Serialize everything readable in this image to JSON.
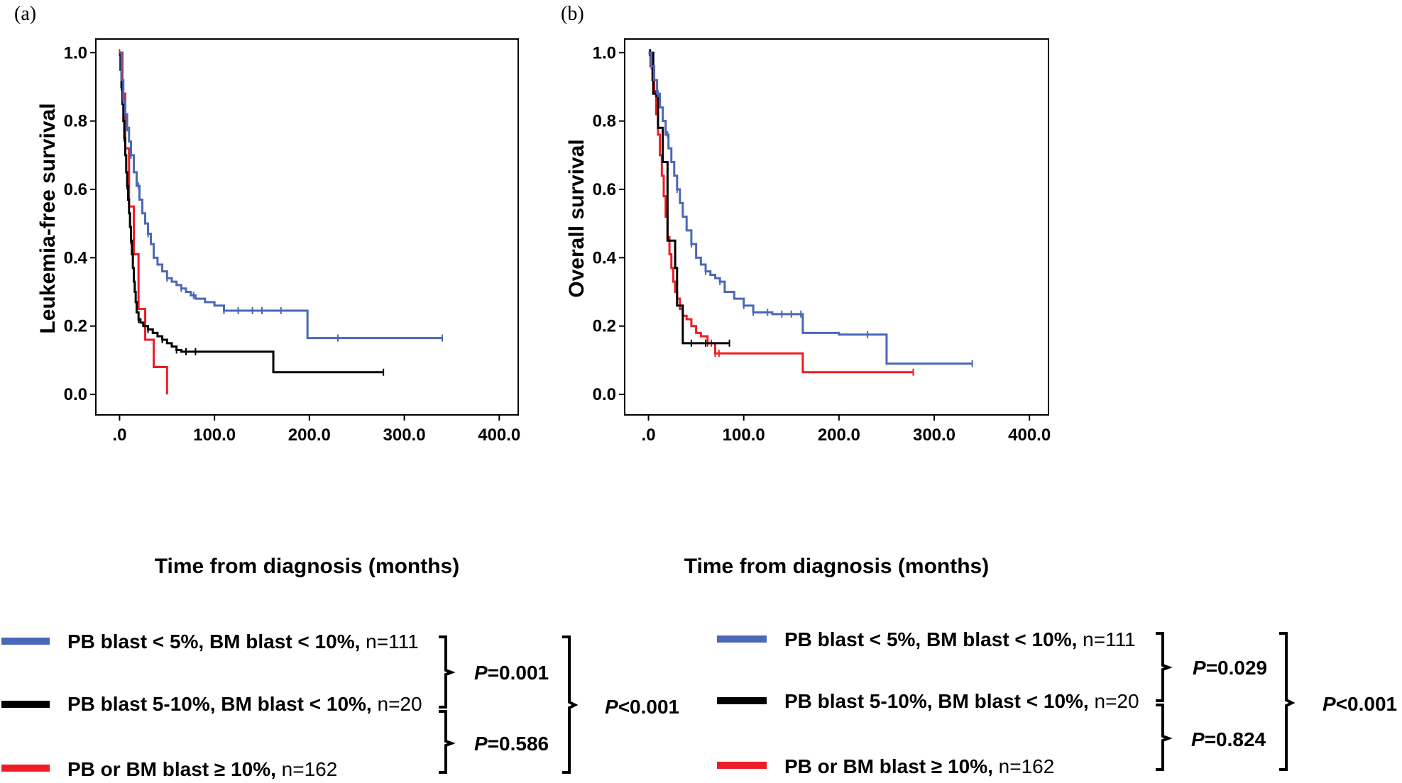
{
  "colors": {
    "blue": "#4a68b6",
    "black": "#000000",
    "red": "#ee1c25"
  },
  "chart_data": [
    {
      "type": "line",
      "panel_label": "(a)",
      "ylabel": "Leukemia-free survival",
      "xlabel": "Time from diagnosis (months)",
      "xlim": [
        -25,
        420
      ],
      "ylim": [
        -0.06,
        1.04
      ],
      "xticks": [
        0,
        100,
        200,
        300,
        400
      ],
      "xtick_labels": [
        ".0",
        "100.0",
        "200.0",
        "300.0",
        "400.0"
      ],
      "yticks": [
        0,
        0.2,
        0.4,
        0.6,
        0.8,
        1.0
      ],
      "ytick_labels": [
        "0.0",
        "0.2",
        "0.4",
        "0.6",
        "0.8",
        "1.0"
      ],
      "series": [
        {
          "name": "PB blast < 5%, BM blast < 10%",
          "color": "blue",
          "x": [
            0,
            2,
            4,
            6,
            8,
            10,
            12,
            15,
            18,
            21,
            24,
            27,
            30,
            33,
            36,
            40,
            45,
            50,
            55,
            60,
            65,
            70,
            75,
            80,
            90,
            100,
            110,
            150,
            198,
            340
          ],
          "y": [
            1.0,
            0.92,
            0.86,
            0.82,
            0.78,
            0.74,
            0.7,
            0.65,
            0.61,
            0.57,
            0.53,
            0.5,
            0.47,
            0.44,
            0.4,
            0.38,
            0.36,
            0.34,
            0.33,
            0.32,
            0.31,
            0.3,
            0.29,
            0.28,
            0.27,
            0.26,
            0.245,
            0.245,
            0.165,
            0.165
          ],
          "censor_x": [
            4,
            8,
            12,
            20,
            30,
            50,
            65,
            78,
            110,
            125,
            140,
            150,
            170,
            230,
            340
          ]
        },
        {
          "name": "PB blast 5-10%, BM blast < 10%",
          "color": "black",
          "x": [
            0,
            1,
            2,
            3,
            4,
            5,
            6,
            7,
            8,
            9,
            10,
            11,
            12,
            13,
            14,
            15,
            16,
            17,
            18,
            20,
            22,
            25,
            30,
            35,
            40,
            45,
            50,
            55,
            60,
            65,
            70,
            100,
            162,
            170,
            278
          ],
          "y": [
            1.0,
            0.95,
            0.9,
            0.85,
            0.8,
            0.75,
            0.7,
            0.65,
            0.61,
            0.57,
            0.53,
            0.49,
            0.45,
            0.41,
            0.37,
            0.33,
            0.3,
            0.27,
            0.24,
            0.22,
            0.21,
            0.2,
            0.19,
            0.18,
            0.17,
            0.16,
            0.15,
            0.14,
            0.13,
            0.125,
            0.125,
            0.125,
            0.065,
            0.065,
            0.065
          ],
          "censor_x": [
            2,
            5,
            8,
            12,
            20,
            30,
            45,
            60,
            70,
            80,
            278
          ]
        },
        {
          "name": "PB or BM blast ≥ 10%",
          "color": "red",
          "x": [
            0,
            3,
            6,
            10,
            15,
            20,
            27,
            36,
            50
          ],
          "y": [
            1.0,
            0.88,
            0.72,
            0.55,
            0.41,
            0.25,
            0.16,
            0.08,
            0.0
          ],
          "censor_x": [
            0
          ]
        }
      ]
    },
    {
      "type": "line",
      "panel_label": "(b)",
      "ylabel": "Overall survival",
      "xlabel": "Time from diagnosis (months)",
      "xlim": [
        -25,
        420
      ],
      "ylim": [
        -0.06,
        1.04
      ],
      "xticks": [
        0,
        100,
        200,
        300,
        400
      ],
      "xtick_labels": [
        ".0",
        "100.0",
        "200.0",
        "300.0",
        "400.0"
      ],
      "yticks": [
        0,
        0.2,
        0.4,
        0.6,
        0.8,
        1.0
      ],
      "ytick_labels": [
        "0.0",
        "0.2",
        "0.4",
        "0.6",
        "0.8",
        "1.0"
      ],
      "series": [
        {
          "name": "PB blast < 5%, BM blast < 10%",
          "color": "blue",
          "x": [
            0,
            3,
            6,
            9,
            12,
            15,
            18,
            21,
            24,
            27,
            30,
            33,
            36,
            40,
            45,
            50,
            55,
            60,
            65,
            70,
            75,
            80,
            90,
            100,
            110,
            130,
            162,
            200,
            250,
            340
          ],
          "y": [
            1.0,
            0.96,
            0.92,
            0.88,
            0.84,
            0.8,
            0.76,
            0.72,
            0.68,
            0.64,
            0.6,
            0.56,
            0.52,
            0.48,
            0.44,
            0.4,
            0.38,
            0.36,
            0.35,
            0.34,
            0.33,
            0.3,
            0.28,
            0.26,
            0.24,
            0.235,
            0.18,
            0.175,
            0.09,
            0.09
          ],
          "censor_x": [
            10,
            20,
            30,
            45,
            60,
            75,
            100,
            110,
            125,
            140,
            150,
            160,
            230,
            340
          ]
        },
        {
          "name": "PB blast 5-10%, BM blast < 10%",
          "color": "black",
          "x": [
            0,
            5,
            10,
            15,
            20,
            28,
            30,
            36,
            40,
            85
          ],
          "y": [
            1.0,
            0.88,
            0.78,
            0.68,
            0.45,
            0.37,
            0.26,
            0.15,
            0.15,
            0.15
          ],
          "censor_x": [
            2,
            8,
            45,
            60,
            85
          ]
        },
        {
          "name": "PB or BM blast ≥ 10%",
          "color": "red",
          "x": [
            0,
            2,
            4,
            6,
            8,
            10,
            12,
            14,
            16,
            18,
            20,
            22,
            24,
            26,
            28,
            30,
            33,
            36,
            40,
            45,
            50,
            55,
            62,
            70,
            80,
            100,
            162,
            170,
            278
          ],
          "y": [
            1.0,
            0.96,
            0.92,
            0.88,
            0.82,
            0.76,
            0.7,
            0.64,
            0.58,
            0.52,
            0.46,
            0.41,
            0.37,
            0.33,
            0.3,
            0.28,
            0.25,
            0.23,
            0.22,
            0.2,
            0.18,
            0.17,
            0.15,
            0.12,
            0.12,
            0.12,
            0.065,
            0.065,
            0.065
          ],
          "censor_x": [
            1,
            3,
            5,
            62,
            66,
            70,
            74,
            278
          ]
        }
      ]
    }
  ],
  "legend_a": {
    "items": [
      {
        "label": "PB blast < 5%, BM blast < 10%,",
        "n": " n=111",
        "color": "blue"
      },
      {
        "label": "PB blast 5-10%, BM blast < 10%,",
        "n": " n=20",
        "color": "black"
      },
      {
        "label": "PB or BM blast ≥ 10%,",
        "n": " n=162",
        "color": "red"
      }
    ],
    "p_letter": "P",
    "p12": "=0.001",
    "p23": "=0.586",
    "p_all": "<0.001"
  },
  "legend_b": {
    "items": [
      {
        "label": "PB blast < 5%, BM blast < 10%,",
        "n": " n=111",
        "color": "blue"
      },
      {
        "label": "PB blast 5-10%, BM blast < 10%,",
        "n": " n=20",
        "color": "black"
      },
      {
        "label": "PB or BM blast ≥ 10%,",
        "n": " n=162",
        "color": "red"
      }
    ],
    "p_letter": "P",
    "p12": "=0.029",
    "p23": "=0.824",
    "p_all": "<0.001"
  }
}
